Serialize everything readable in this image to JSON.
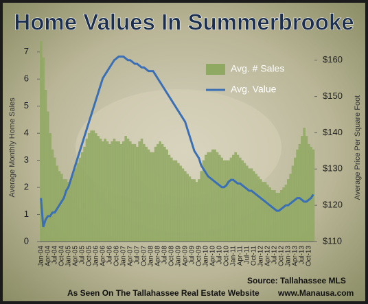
{
  "chart_data": {
    "type": "bar-line",
    "title": "Home Values In Summerbrooke",
    "ylabel": "Average Monthly Home Sales",
    "y2label": "Average Price Per Square Foot",
    "notes": [
      "Source: Tallahassee MLS",
      "As Seen On The Tallahassee Real Estate Website",
      "www.Manausa.com"
    ],
    "categories": [
      "Jan-04",
      null,
      null,
      "Apr-04",
      null,
      null,
      "Jul-04",
      null,
      null,
      "Oct-04",
      null,
      null,
      "Jan-05",
      null,
      null,
      "Apr-05",
      null,
      null,
      "Jul-05",
      null,
      null,
      "Oct-05",
      null,
      null,
      "Jan-06",
      null,
      null,
      "Apr-06",
      null,
      null,
      "Jul-06",
      null,
      null,
      "Oct-06",
      null,
      null,
      "Jan-07",
      null,
      null,
      "Apr-07",
      null,
      null,
      "Jul-07",
      null,
      null,
      "Oct-07",
      null,
      null,
      "Jan-08",
      null,
      null,
      "Apr-08",
      null,
      null,
      "Jul-08",
      null,
      null,
      "Oct-08",
      null,
      null,
      "Jan-09",
      null,
      null,
      "Apr-09",
      null,
      null,
      "Jul-09",
      null,
      null,
      "Oct-09",
      null,
      null,
      "Jan-10",
      null,
      null,
      "Apr-10",
      null,
      null,
      "Jul-10",
      null,
      null,
      "Oct-10",
      null,
      null,
      "Jan-11",
      null,
      null,
      "Apr-11",
      null,
      null,
      "Jul-11",
      null,
      null,
      "Oct-11",
      null,
      null,
      "Jan-12",
      null,
      null,
      "Apr-12",
      null,
      null,
      "Jul-12",
      null,
      null,
      "Oct-12",
      null,
      null,
      "Jan-13",
      null,
      null,
      "Apr-13",
      null,
      null,
      "Jul-13",
      null,
      null,
      "Oct-13",
      null,
      null
    ],
    "series": [
      {
        "name": "Avg. # Sales",
        "color": "#8fa862",
        "values": [
          7.4,
          6.8,
          5.6,
          4.8,
          4.0,
          3.4,
          3.1,
          2.8,
          2.6,
          2.5,
          2.3,
          2.3,
          2.2,
          2.3,
          2.5,
          2.7,
          2.9,
          3.1,
          3.3,
          3.5,
          3.8,
          4.0,
          4.1,
          4.1,
          4.0,
          3.9,
          3.8,
          3.7,
          3.8,
          3.7,
          3.6,
          3.7,
          3.8,
          3.7,
          3.7,
          3.6,
          3.7,
          3.9,
          3.8,
          3.7,
          3.6,
          3.6,
          3.5,
          3.7,
          3.8,
          3.6,
          3.5,
          3.4,
          3.3,
          3.3,
          3.5,
          3.6,
          3.7,
          3.6,
          3.5,
          3.4,
          3.2,
          3.1,
          3.0,
          3.0,
          2.9,
          2.8,
          2.7,
          2.6,
          2.5,
          2.4,
          2.3,
          2.3,
          2.2,
          2.3,
          2.6,
          3.0,
          3.2,
          3.3,
          3.3,
          3.4,
          3.4,
          3.3,
          3.2,
          3.1,
          3.0,
          3.0,
          3.0,
          3.1,
          3.2,
          3.3,
          3.2,
          3.1,
          3.0,
          2.9,
          2.8,
          2.7,
          2.7,
          2.6,
          2.5,
          2.4,
          2.3,
          2.2,
          2.2,
          2.1,
          2.0,
          1.9,
          1.9,
          1.8,
          1.8,
          1.9,
          2.0,
          2.1,
          2.3,
          2.5,
          2.8,
          3.1,
          3.4,
          3.6,
          3.9,
          4.2,
          3.9,
          3.6,
          3.5,
          3.4
        ]
      },
      {
        "name": "Avg. Value",
        "color": "#3a6fb5",
        "axis": "y2",
        "values": [
          122,
          114,
          116,
          117,
          117,
          118,
          118,
          119,
          120,
          121,
          122,
          124,
          125,
          127,
          129,
          131,
          133,
          135,
          137,
          139,
          141,
          143,
          145,
          147,
          149,
          151,
          153,
          155,
          156,
          157,
          158,
          159,
          160,
          160.5,
          161,
          161,
          161,
          160.5,
          160,
          160,
          159.5,
          159,
          159,
          158.5,
          158,
          158,
          157.5,
          157,
          157,
          157,
          156,
          155,
          154,
          153,
          152,
          151,
          150,
          149,
          148,
          147,
          146,
          145,
          144,
          143,
          141,
          139,
          137,
          135,
          134,
          133,
          131,
          130,
          129,
          128,
          127.5,
          127,
          126.5,
          126,
          125.5,
          125,
          125,
          125.5,
          126.5,
          127,
          127,
          126.5,
          126,
          126,
          125.5,
          125,
          124.5,
          124,
          124,
          123.5,
          123,
          122.5,
          122,
          121.5,
          121,
          120.5,
          120,
          119.5,
          119,
          118.5,
          118.5,
          119,
          119.5,
          120,
          120,
          120.5,
          121,
          121.5,
          122,
          122,
          121.5,
          121,
          121,
          121.5,
          122,
          123
        ]
      }
    ],
    "ylim": [
      0,
      7.5
    ],
    "yticks": [
      0,
      1,
      2,
      3,
      4,
      5,
      6,
      7
    ],
    "y2lim": [
      110,
      166
    ],
    "y2ticks": [
      {
        "value": 110,
        "label": "$110"
      },
      {
        "value": 120,
        "label": "$120"
      },
      {
        "value": 130,
        "label": "$130"
      },
      {
        "value": 140,
        "label": "$140"
      },
      {
        "value": 150,
        "label": "$150"
      },
      {
        "value": 160,
        "label": "$160"
      }
    ]
  }
}
